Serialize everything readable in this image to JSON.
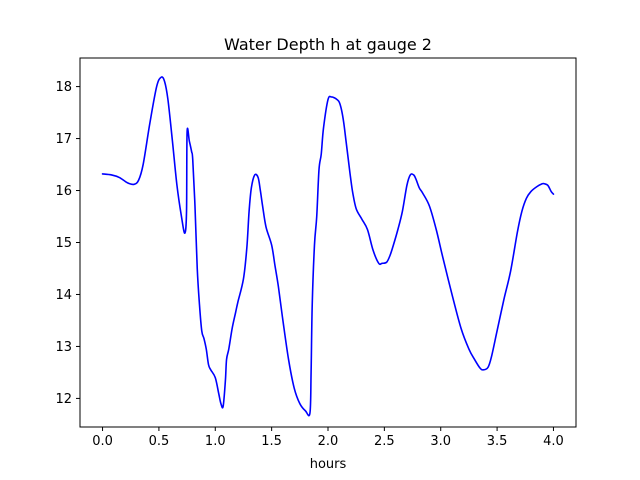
{
  "chart_data": {
    "type": "line",
    "title": "Water Depth h at gauge 2",
    "xlabel": "hours",
    "ylabel": "",
    "xlim": [
      -0.2,
      4.2
    ],
    "ylim": [
      11.45,
      18.55
    ],
    "xticks": [
      0.0,
      0.5,
      1.0,
      1.5,
      2.0,
      2.5,
      3.0,
      3.5,
      4.0
    ],
    "xtick_labels": [
      "0.0",
      "0.5",
      "1.0",
      "1.5",
      "2.0",
      "2.5",
      "3.0",
      "3.5",
      "4.0"
    ],
    "yticks": [
      12,
      13,
      14,
      15,
      16,
      17,
      18
    ],
    "ytick_labels": [
      "12",
      "13",
      "14",
      "15",
      "16",
      "17",
      "18"
    ],
    "grid": false,
    "series": [
      {
        "color": "#0000ff",
        "x": [
          0.0,
          0.08,
          0.15,
          0.22,
          0.28,
          0.32,
          0.36,
          0.42,
          0.48,
          0.52,
          0.55,
          0.58,
          0.62,
          0.66,
          0.7,
          0.73,
          0.745,
          0.75,
          0.77,
          0.79,
          0.8,
          0.82,
          0.84,
          0.86,
          0.88,
          0.9,
          0.92,
          0.94,
          0.96,
          1.0,
          1.03,
          1.05,
          1.07,
          1.09,
          1.1,
          1.12,
          1.15,
          1.18,
          1.2,
          1.25,
          1.28,
          1.3,
          1.32,
          1.35,
          1.38,
          1.4,
          1.42,
          1.45,
          1.5,
          1.53,
          1.56,
          1.6,
          1.65,
          1.7,
          1.75,
          1.8,
          1.84,
          1.85,
          1.86,
          1.88,
          1.9,
          1.92,
          1.94,
          1.96,
          2.0,
          2.03,
          2.06,
          2.08,
          2.1,
          2.12,
          2.14,
          2.16,
          2.18,
          2.2,
          2.22,
          2.25,
          2.3,
          2.35,
          2.4,
          2.45,
          2.48,
          2.52,
          2.55,
          2.58,
          2.62,
          2.66,
          2.7,
          2.73,
          2.76,
          2.78,
          2.81,
          2.84,
          2.9,
          2.96,
          3.02,
          3.1,
          3.18,
          3.25,
          3.3,
          3.35,
          3.38,
          3.42,
          3.45,
          3.5,
          3.56,
          3.62,
          3.68,
          3.72,
          3.76,
          3.8,
          3.85,
          3.9,
          3.92,
          3.95,
          3.98,
          4.0
        ],
        "y": [
          16.32,
          16.3,
          16.25,
          16.15,
          16.12,
          16.2,
          16.5,
          17.3,
          18.0,
          18.18,
          18.1,
          17.75,
          16.95,
          16.1,
          15.5,
          15.18,
          15.6,
          17.12,
          16.95,
          16.75,
          16.6,
          15.7,
          14.5,
          13.8,
          13.3,
          13.15,
          12.95,
          12.65,
          12.55,
          12.4,
          12.1,
          11.9,
          11.85,
          12.35,
          12.75,
          12.95,
          13.35,
          13.65,
          13.85,
          14.3,
          14.9,
          15.6,
          16.05,
          16.3,
          16.25,
          16.0,
          15.7,
          15.3,
          14.95,
          14.55,
          14.15,
          13.5,
          12.75,
          12.2,
          11.9,
          11.76,
          11.72,
          12.5,
          13.8,
          14.95,
          15.5,
          16.4,
          16.7,
          17.2,
          17.75,
          17.8,
          17.78,
          17.75,
          17.7,
          17.55,
          17.3,
          16.95,
          16.6,
          16.25,
          15.95,
          15.65,
          15.45,
          15.25,
          14.85,
          14.6,
          14.6,
          14.62,
          14.75,
          14.95,
          15.25,
          15.6,
          16.1,
          16.3,
          16.3,
          16.22,
          16.05,
          15.95,
          15.7,
          15.25,
          14.7,
          14.0,
          13.35,
          12.95,
          12.75,
          12.58,
          12.55,
          12.6,
          12.8,
          13.3,
          13.9,
          14.45,
          15.2,
          15.6,
          15.85,
          15.98,
          16.07,
          16.13,
          16.13,
          16.1,
          15.98,
          15.93
        ]
      }
    ]
  }
}
